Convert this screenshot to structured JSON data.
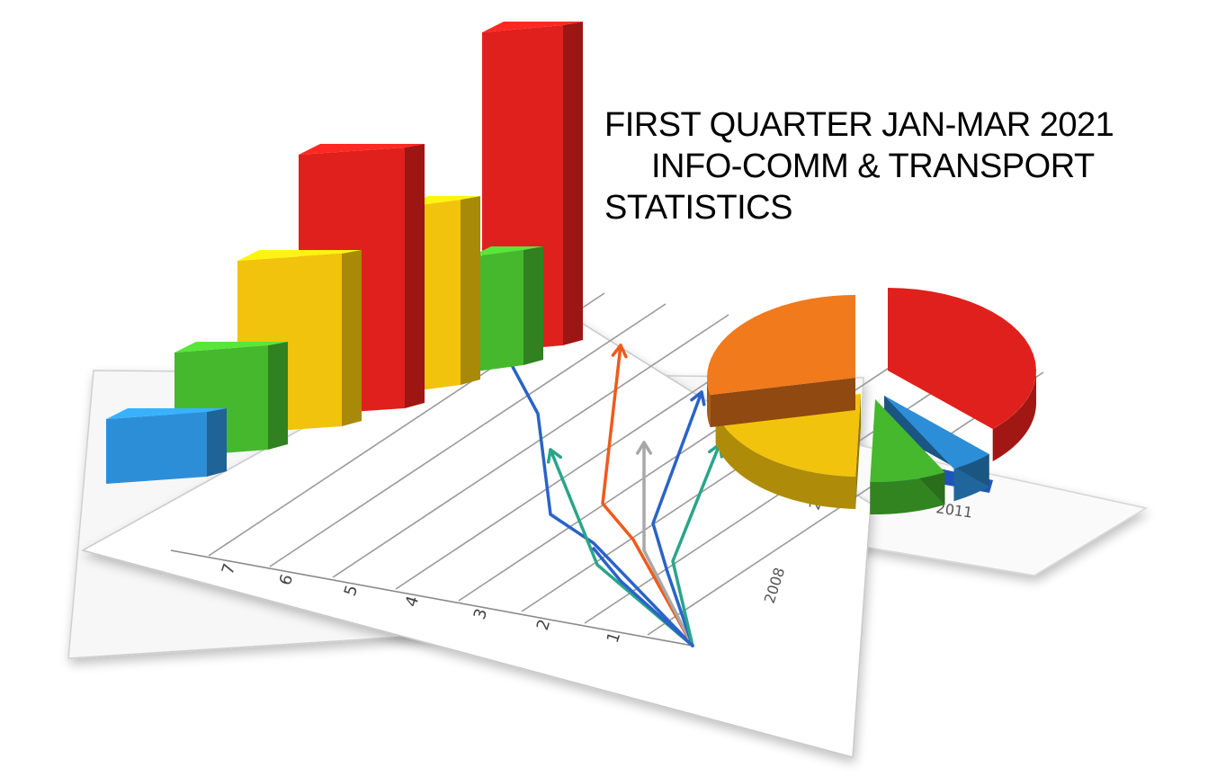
{
  "title": {
    "line1": "FIRST QUARTER JAN-MAR 2021",
    "line2": "INFO-COMM & TRANSPORT",
    "line3": "STATISTICS"
  },
  "illustration": {
    "x_axis_labels": [
      "1",
      "2",
      "3",
      "4",
      "5",
      "6",
      "7"
    ],
    "year_labels": [
      "2008",
      "2009",
      "2011"
    ],
    "colors": {
      "red": "#e0201c",
      "yellow": "#f2c30c",
      "green": "#46b82e",
      "blue": "#2d8ed8",
      "orange": "#f07a1c",
      "line_blue": "#2a63c8",
      "line_orange": "#f05a1a",
      "line_teal": "#2aa58a",
      "line_gray": "#a8a8a8"
    }
  }
}
